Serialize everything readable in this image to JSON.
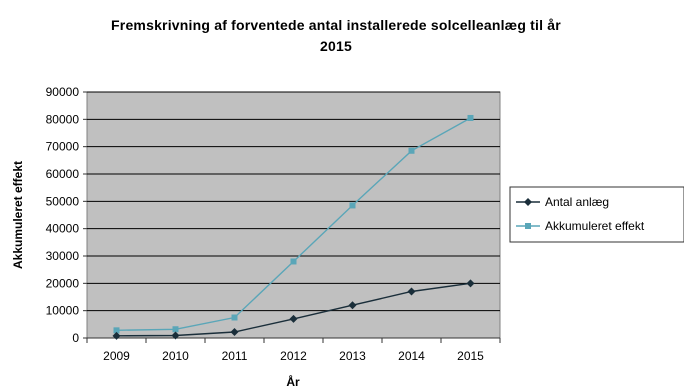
{
  "chart_data": {
    "type": "line",
    "title_lines": [
      "Fremskrivning af forventede antal installerede solcelleanlæg til år",
      "2015"
    ],
    "xlabel": "År",
    "ylabel": "Akkumuleret effekt",
    "categories": [
      "2009",
      "2010",
      "2011",
      "2012",
      "2013",
      "2014",
      "2015"
    ],
    "ylim": [
      0,
      90000
    ],
    "yticks": [
      "0",
      "10000",
      "20000",
      "30000",
      "40000",
      "50000",
      "60000",
      "70000",
      "80000",
      "90000"
    ],
    "grid": true,
    "legend_position": "right",
    "series": [
      {
        "name": "Antal anlæg",
        "color": "#1a2e3a",
        "marker": "diamond",
        "values": [
          800,
          900,
          2200,
          7000,
          12000,
          17000,
          20000
        ]
      },
      {
        "name": "Akkumuleret effekt",
        "color": "#5aa6b8",
        "marker": "square",
        "values": [
          2800,
          3200,
          7500,
          28000,
          48500,
          68500,
          80500
        ]
      }
    ],
    "plot_background": "#c0c0c0"
  }
}
